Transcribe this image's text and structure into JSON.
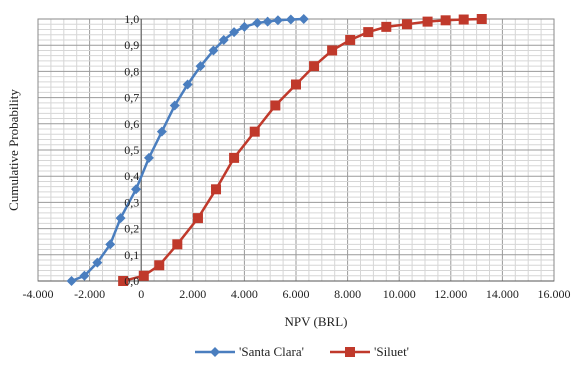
{
  "chart_data": {
    "type": "line",
    "xlabel": "NPV (BRL)",
    "ylabel": "Cumulative Probability",
    "xlim": [
      -4000,
      16000
    ],
    "ylim": [
      0,
      1
    ],
    "x_ticks": [
      -4000,
      -2000,
      0,
      2000,
      4000,
      6000,
      8000,
      10000,
      12000,
      14000,
      16000
    ],
    "x_tick_labels": [
      "-4.000",
      "-2.000",
      "0",
      "2.000",
      "4.000",
      "6.000",
      "8.000",
      "10.000",
      "12.000",
      "14.000",
      "16.000"
    ],
    "y_ticks": [
      0,
      0.1,
      0.2,
      0.3,
      0.4,
      0.5,
      0.6,
      0.7,
      0.8,
      0.9,
      1.0
    ],
    "y_tick_labels": [
      "0,0",
      "0,1",
      "0,2",
      "0,3",
      "0,4",
      "0,5",
      "0,6",
      "0,7",
      "0,8",
      "0,9",
      "1,0"
    ],
    "grid": true,
    "legend_position": "bottom-center",
    "series": [
      {
        "name": "'Santa Clara'",
        "color": "#4a7ebf",
        "marker": "diamond",
        "x": [
          -2700,
          -2200,
          -1700,
          -1200,
          -800,
          -200,
          300,
          800,
          1300,
          1800,
          2300,
          2800,
          3200,
          3600,
          4000,
          4500,
          4900,
          5300,
          5800,
          6300
        ],
        "y": [
          0.0,
          0.02,
          0.07,
          0.14,
          0.24,
          0.35,
          0.47,
          0.57,
          0.67,
          0.75,
          0.82,
          0.88,
          0.92,
          0.95,
          0.97,
          0.985,
          0.99,
          0.995,
          0.998,
          1.0
        ]
      },
      {
        "name": "'Siluet'",
        "color": "#c0392b",
        "marker": "square",
        "x": [
          -700,
          100,
          700,
          1400,
          2200,
          2900,
          3600,
          4400,
          5200,
          6000,
          6700,
          7400,
          8100,
          8800,
          9500,
          10300,
          11100,
          11800,
          12500,
          13200
        ],
        "y": [
          0.0,
          0.02,
          0.06,
          0.14,
          0.24,
          0.35,
          0.47,
          0.57,
          0.67,
          0.75,
          0.82,
          0.88,
          0.92,
          0.95,
          0.97,
          0.98,
          0.99,
          0.995,
          0.998,
          1.0
        ]
      }
    ]
  }
}
